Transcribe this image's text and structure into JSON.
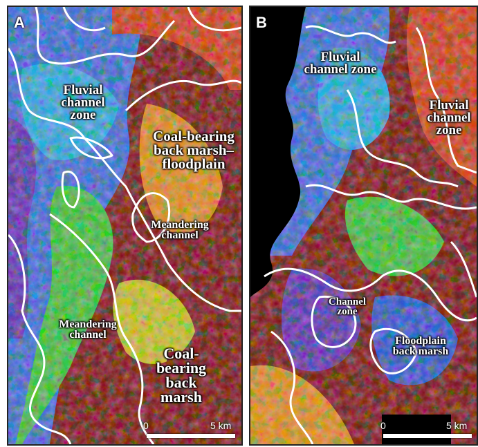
{
  "panels": {
    "a": {
      "letter": "A",
      "labels": {
        "fluvial": "Fluvial channel zone",
        "coal_marsh_floodplain": "Coal-bearing back marsh–floodplain",
        "meandering_upper": "Meandering channel",
        "meandering_lower": "Meandering channel",
        "coal_back_marsh": "Coal-bearing back marsh"
      },
      "scale": {
        "zero": "0",
        "end": "5 km"
      }
    },
    "b": {
      "letter": "B",
      "labels": {
        "fluvial_left": "Fluvial channel zone",
        "fluvial_right": "Fluvial channel zone",
        "channel_zone": "Channel zone",
        "floodplain": "Floodplain back marsh"
      },
      "scale": {
        "zero": "0",
        "end": "5 km"
      }
    }
  },
  "colors": {
    "boundary": "#ffffff",
    "palette": [
      "#3050d0",
      "#5a2db0",
      "#36a7e0",
      "#3fbf3a",
      "#c8c020",
      "#e08a1a",
      "#d23a14",
      "#7a0f0f"
    ],
    "background_void": "#000000"
  }
}
